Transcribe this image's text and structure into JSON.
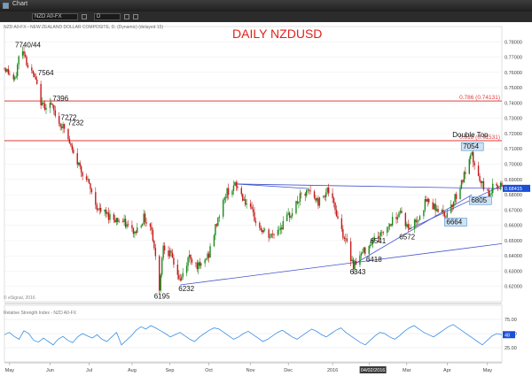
{
  "window": {
    "title": "Chart"
  },
  "toolbar": {
    "symbol": "NZD A0-FX",
    "interval": "D"
  },
  "price_panel": {
    "header": "NZD A0-FX - NEW ZEALAND DOLLAR COMPOSITE, D, (Dynamic) (delayed 15)",
    "chart_title": "DAILY NZDUSD",
    "copyright": "© eSignal, 2016",
    "fib_levels": [
      {
        "label": "0.786 (0.74131)",
        "value": 0.74131,
        "color": "#e03a3a"
      },
      {
        "label": "0.618 (0.71531)",
        "value": 0.71531,
        "color": "#e03a3a"
      }
    ],
    "last_price": "0.68415",
    "accent": "#1a4fd6"
  },
  "indicator_panel": {
    "header": "Relative Strength Index - NZD A0-FX",
    "last_value": "48"
  },
  "chart_data": [
    {
      "type": "line",
      "title": "DAILY NZDUSD",
      "ylabel": "",
      "x_range": [
        "2015-04-27",
        "2016-05-13"
      ],
      "ylim": [
        0.61,
        0.79
      ],
      "y_ticks": [
        "0.78000",
        "0.77000",
        "0.76000",
        "0.75000",
        "0.74000",
        "0.73000",
        "0.72000",
        "0.71000",
        "0.70000",
        "0.69000",
        "0.68000",
        "0.67000",
        "0.66000",
        "0.65000",
        "0.64000",
        "0.63000",
        "0.62000"
      ],
      "x_ticks": [
        "May",
        "Jun",
        "Jul",
        "Aug",
        "Sep",
        "Oct",
        "Nov",
        "Dec",
        "2016",
        "Feb",
        "Mar",
        "Apr",
        "May"
      ],
      "x_cursor_label": "04/02/2016",
      "series": [
        {
          "values": [
            [
              "2015-04-27",
              0.763
            ],
            [
              "2015-04-30",
              0.76
            ],
            [
              "2015-05-05",
              0.754
            ],
            [
              "2015-05-08",
              0.77
            ],
            [
              "2015-05-12",
              0.774
            ],
            [
              "2015-05-15",
              0.764
            ],
            [
              "2015-05-20",
              0.7564
            ],
            [
              "2015-05-26",
              0.738
            ],
            [
              "2015-06-01",
              0.7396
            ],
            [
              "2015-06-08",
              0.7272
            ],
            [
              "2015-06-12",
              0.7232
            ],
            [
              "2015-06-19",
              0.706
            ],
            [
              "2015-06-29",
              0.69
            ],
            [
              "2015-07-08",
              0.67
            ],
            [
              "2015-07-17",
              0.666
            ],
            [
              "2015-07-27",
              0.662
            ],
            [
              "2015-08-05",
              0.655
            ],
            [
              "2015-08-12",
              0.665
            ],
            [
              "2015-08-18",
              0.658
            ],
            [
              "2015-08-24",
              0.6195
            ],
            [
              "2015-08-27",
              0.648
            ],
            [
              "2015-09-03",
              0.638
            ],
            [
              "2015-09-09",
              0.6232
            ],
            [
              "2015-09-16",
              0.64
            ],
            [
              "2015-09-24",
              0.632
            ],
            [
              "2015-10-01",
              0.641
            ],
            [
              "2015-10-08",
              0.665
            ],
            [
              "2015-10-15",
              0.682
            ],
            [
              "2015-10-22",
              0.686
            ],
            [
              "2015-10-30",
              0.674
            ],
            [
              "2015-11-09",
              0.658
            ],
            [
              "2015-11-17",
              0.652
            ],
            [
              "2015-11-26",
              0.66
            ],
            [
              "2015-12-03",
              0.668
            ],
            [
              "2015-12-10",
              0.678
            ],
            [
              "2015-12-17",
              0.682
            ],
            [
              "2015-12-24",
              0.675
            ],
            [
              "2015-12-31",
              0.684
            ],
            [
              "2016-01-07",
              0.668
            ],
            [
              "2016-01-13",
              0.652
            ],
            [
              "2016-01-20",
              0.6343
            ],
            [
              "2016-01-27",
              0.6418
            ],
            [
              "2016-02-03",
              0.65
            ],
            [
              "2016-02-10",
              0.6541
            ],
            [
              "2016-02-18",
              0.662
            ],
            [
              "2016-02-25",
              0.67
            ],
            [
              "2016-03-02",
              0.6572
            ],
            [
              "2016-03-09",
              0.664
            ],
            [
              "2016-03-16",
              0.676
            ],
            [
              "2016-03-23",
              0.672
            ],
            [
              "2016-03-30",
              0.6664
            ],
            [
              "2016-04-06",
              0.676
            ],
            [
              "2016-04-13",
              0.69
            ],
            [
              "2016-04-20",
              0.7054
            ],
            [
              "2016-04-26",
              0.688
            ],
            [
              "2016-05-03",
              0.6805
            ],
            [
              "2016-05-09",
              0.688
            ],
            [
              "2016-05-13",
              0.68415
            ]
          ]
        }
      ],
      "annotations": [
        {
          "text": "7740/44",
          "x": "2015-05-12",
          "y": 0.774
        },
        {
          "text": "7564",
          "x": "2015-05-20",
          "y": 0.7564
        },
        {
          "text": "7396",
          "x": "2015-06-01",
          "y": 0.7396
        },
        {
          "text": "7272",
          "x": "2015-06-08",
          "y": 0.7272
        },
        {
          "text": "7232",
          "x": "2015-06-12",
          "y": 0.7232
        },
        {
          "text": "6195",
          "x": "2015-08-24",
          "y": 0.6195
        },
        {
          "text": "6232",
          "x": "2015-09-09",
          "y": 0.6232
        },
        {
          "text": "6343",
          "x": "2016-01-20",
          "y": 0.6343
        },
        {
          "text": "6418",
          "x": "2016-01-27",
          "y": 0.6418
        },
        {
          "text": "6541",
          "x": "2016-02-10",
          "y": 0.6541
        },
        {
          "text": "6572",
          "x": "2016-03-02",
          "y": 0.6572
        },
        {
          "text": "6664",
          "x": "2016-03-30",
          "y": 0.6664,
          "boxed": true
        },
        {
          "text": "7054",
          "x": "2016-04-20",
          "y": 0.7054,
          "boxed": true
        },
        {
          "text": "Double Top",
          "x": "2016-04-20",
          "y": 0.7054
        },
        {
          "text": "6805",
          "x": "2016-05-03",
          "y": 0.6805,
          "boxed": true
        }
      ]
    },
    {
      "type": "line",
      "title": "Relative Strength Index - NZD A0-FX",
      "ylim": [
        0,
        100
      ],
      "y_ticks": [
        "75.00",
        "50.00",
        "25.00"
      ],
      "series": [
        {
          "values": [
            48,
            52,
            45,
            40,
            55,
            50,
            38,
            35,
            42,
            36,
            30,
            40,
            45,
            38,
            34,
            44,
            50,
            46,
            42,
            48,
            40,
            36,
            44,
            52,
            30,
            38,
            46,
            56,
            62,
            58,
            64,
            60,
            55,
            50,
            44,
            48,
            52,
            46,
            40,
            36,
            44,
            50,
            56,
            60,
            58,
            52,
            46,
            40,
            44,
            50,
            54,
            48,
            42,
            36,
            40,
            46,
            52,
            56,
            50,
            44,
            40,
            46,
            52,
            58,
            54,
            48,
            44,
            50,
            56,
            60,
            52,
            46,
            40,
            34,
            30,
            38,
            46,
            52,
            50,
            44,
            40,
            46,
            54,
            60,
            64,
            58,
            52,
            48,
            44,
            50,
            56,
            62,
            66,
            60,
            54,
            48,
            42,
            36,
            30,
            38,
            46,
            50,
            48
          ]
        }
      ]
    }
  ]
}
